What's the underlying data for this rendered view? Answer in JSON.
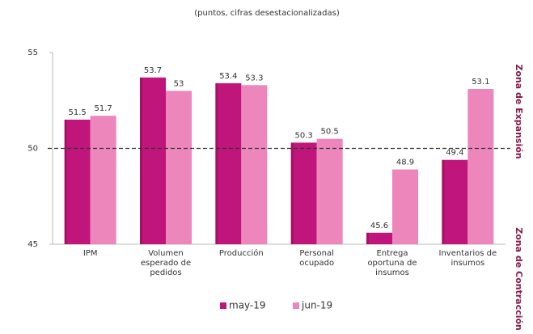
{
  "chart_data": {
    "type": "bar",
    "subtitle": "(puntos, cifras desestacionalizadas)",
    "categories": [
      "IPM",
      "Volumen esperado de pedidos",
      "Producción",
      "Personal ocupado",
      "Entrega oportuna de insumos",
      "Inventarios de insumos"
    ],
    "series": [
      {
        "name": "may-19",
        "color": "#c0157a",
        "values": [
          51.5,
          53.7,
          53.4,
          50.3,
          45.6,
          49.4
        ]
      },
      {
        "name": "jun-19",
        "color": "#ec86bb",
        "values": [
          51.7,
          53.0,
          53.3,
          50.5,
          48.9,
          53.1
        ]
      }
    ],
    "ylim": [
      45,
      55
    ],
    "yticks": [
      45,
      50,
      55
    ],
    "reference_line": 50,
    "annotations": [
      "Zona de Expansión",
      "Zona de Contracción"
    ]
  }
}
